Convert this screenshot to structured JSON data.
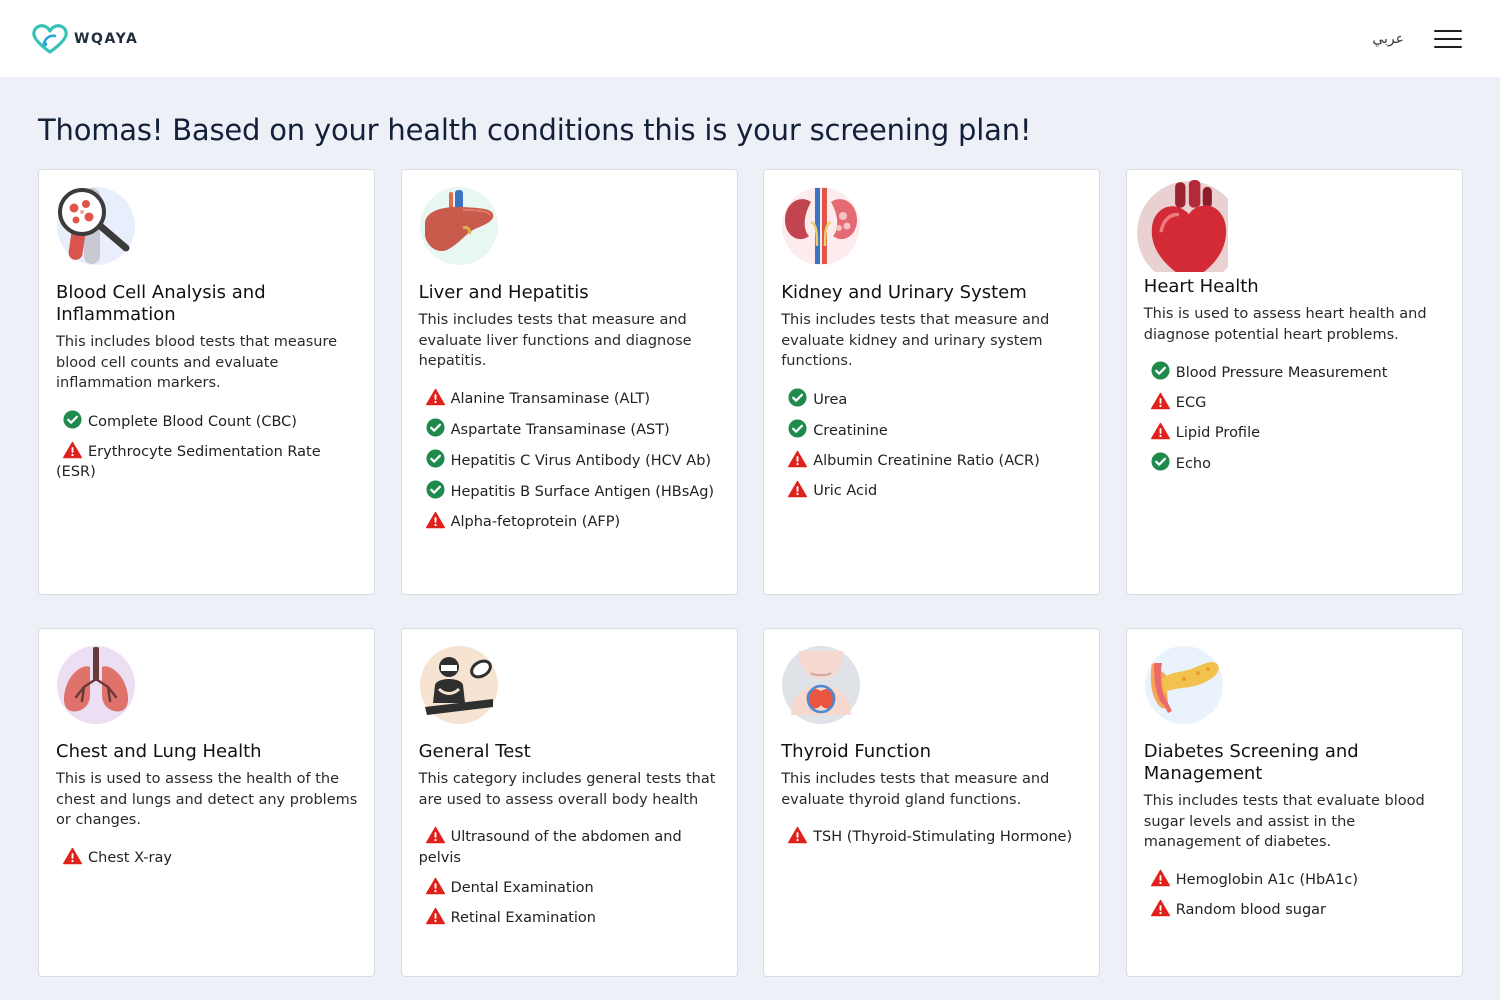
{
  "header": {
    "brand": "WQAYA",
    "language_link": "عربي"
  },
  "heading": "Thomas! Based on your health conditions this is your screening plan!",
  "colors": {
    "ok": "#1e8a4c",
    "warning": "#e0201b",
    "background": "#edf0f7"
  },
  "cards": [
    {
      "icon": "blood-cell-magnifier-icon",
      "title": "Blood Cell Analysis and Inflammation",
      "description": "This includes blood tests that measure blood cell counts and evaluate inflammation markers.",
      "tests": [
        {
          "name": "Complete Blood Count (CBC)",
          "status": "ok"
        },
        {
          "name": "Erythrocyte Sedimentation Rate (ESR)",
          "status": "warning"
        }
      ]
    },
    {
      "icon": "liver-icon",
      "title": "Liver and Hepatitis",
      "description": "This includes tests that measure and evaluate liver functions and diagnose hepatitis.",
      "tests": [
        {
          "name": "Alanine Transaminase (ALT)",
          "status": "warning"
        },
        {
          "name": "Aspartate Transaminase (AST)",
          "status": "ok"
        },
        {
          "name": "Hepatitis C Virus Antibody (HCV Ab)",
          "status": "ok"
        },
        {
          "name": "Hepatitis B Surface Antigen (HBsAg)",
          "status": "ok"
        },
        {
          "name": "Alpha-fetoprotein (AFP)",
          "status": "warning"
        }
      ]
    },
    {
      "icon": "kidney-icon",
      "title": "Kidney and Urinary System",
      "description": "This includes tests that measure and evaluate kidney and urinary system functions.",
      "tests": [
        {
          "name": "Urea",
          "status": "ok"
        },
        {
          "name": "Creatinine",
          "status": "ok"
        },
        {
          "name": "Albumin Creatinine Ratio (ACR)",
          "status": "warning"
        },
        {
          "name": "Uric Acid",
          "status": "warning"
        }
      ]
    },
    {
      "icon": "heart-icon",
      "title": "Heart Health",
      "description": "This is used to assess heart health and diagnose potential heart problems.",
      "tests": [
        {
          "name": "Blood Pressure Measurement",
          "status": "ok"
        },
        {
          "name": "ECG",
          "status": "warning"
        },
        {
          "name": "Lipid Profile",
          "status": "warning"
        },
        {
          "name": "Echo",
          "status": "ok"
        }
      ]
    },
    {
      "icon": "lungs-icon",
      "title": "Chest and Lung Health",
      "description": "This is used to assess the health of the chest and lungs and detect any problems or changes.",
      "tests": [
        {
          "name": "Chest X-ray",
          "status": "warning"
        }
      ]
    },
    {
      "icon": "doctor-exam-icon",
      "title": "General Test",
      "description": "This category includes general tests that are used to assess overall body health",
      "tests": [
        {
          "name": "Ultrasound of the abdomen and pelvis",
          "status": "warning"
        },
        {
          "name": "Dental Examination",
          "status": "warning"
        },
        {
          "name": "Retinal Examination",
          "status": "warning"
        }
      ]
    },
    {
      "icon": "thyroid-icon",
      "title": "Thyroid Function",
      "description": "This includes tests that measure and evaluate thyroid gland functions.",
      "tests": [
        {
          "name": "TSH (Thyroid-Stimulating Hormone)",
          "status": "warning"
        }
      ]
    },
    {
      "icon": "pancreas-icon",
      "title": "Diabetes Screening and Management",
      "description": "This includes tests that evaluate blood sugar levels and assist in the management of diabetes.",
      "tests": [
        {
          "name": "Hemoglobin A1c (HbA1c)",
          "status": "warning"
        },
        {
          "name": "Random blood sugar",
          "status": "warning"
        }
      ]
    }
  ]
}
